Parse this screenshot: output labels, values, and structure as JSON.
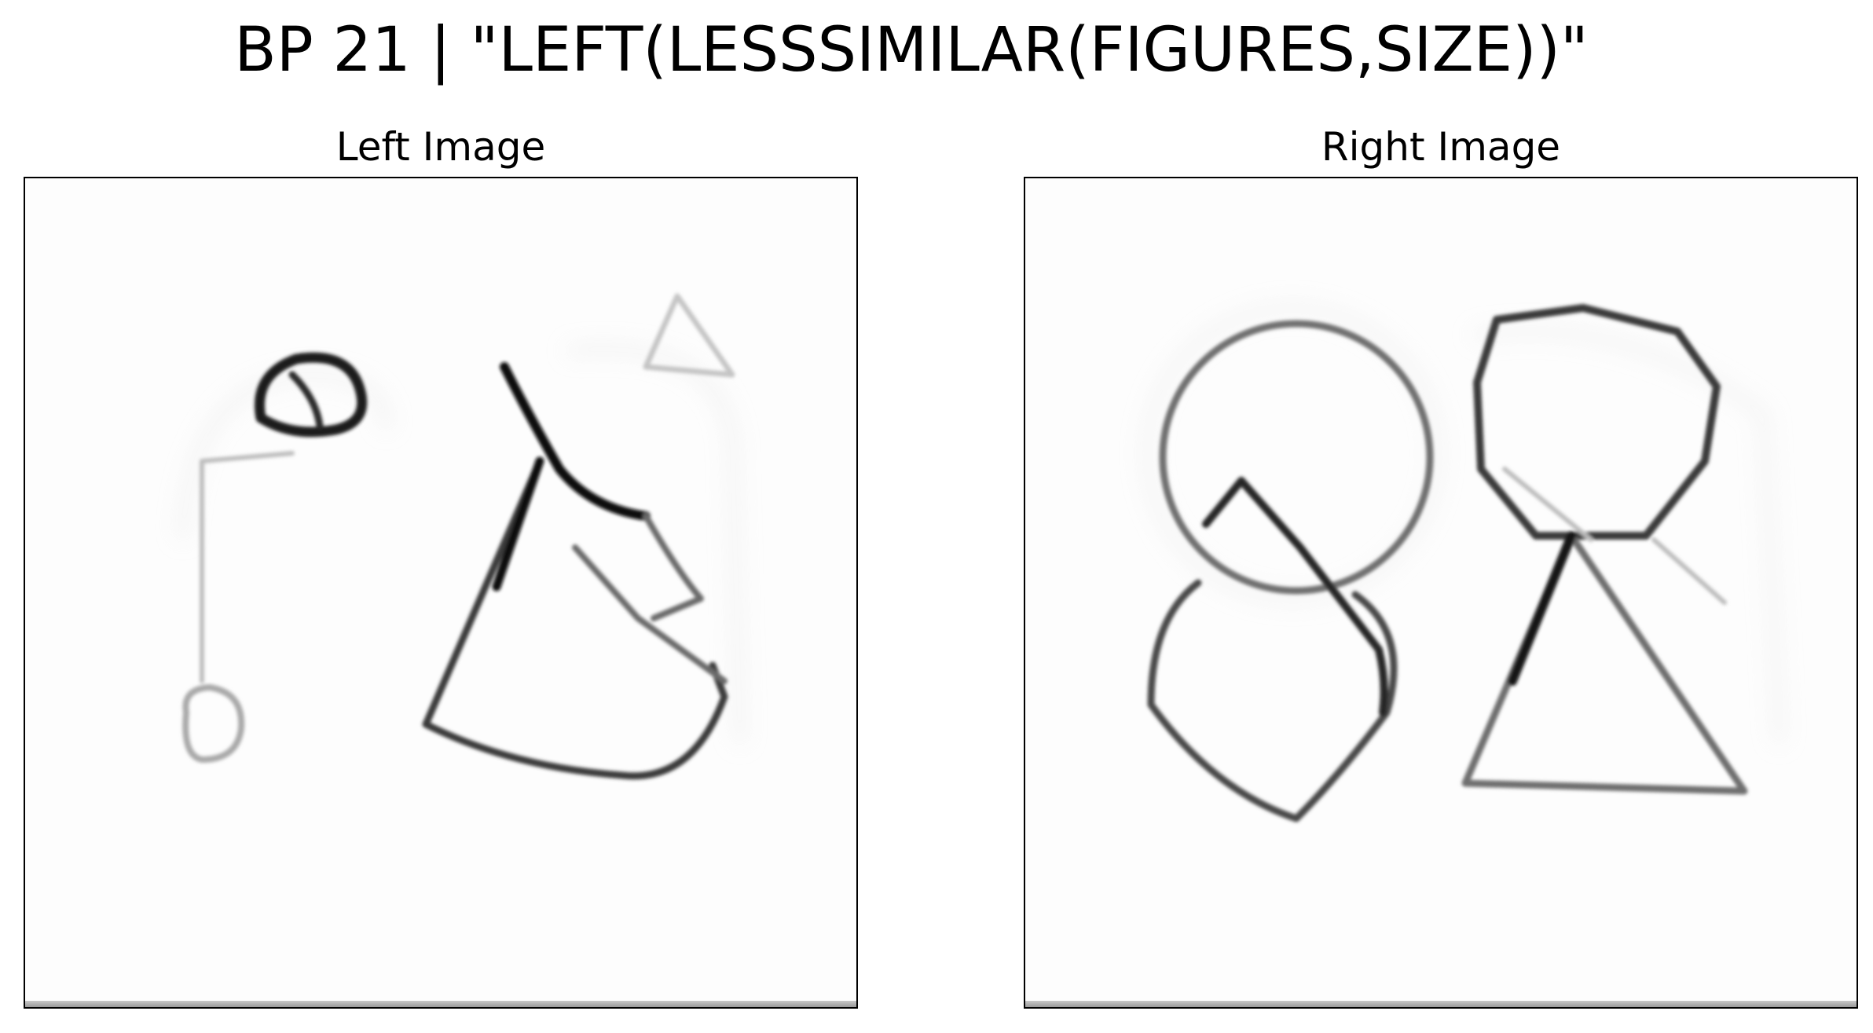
{
  "figure": {
    "title": "BP 21 | \"LEFT(LESSSIMILAR(FIGURES,SIZE))\""
  },
  "panels": {
    "left": {
      "title": "Left Image",
      "drawing": "hand-drawn figures: small dark ellipse, faint flag line with small circle, small faint triangle, large irregular quadrilateral with zigzag"
    },
    "right": {
      "title": "Right Image",
      "drawing": "hand-drawn figures: circle overlapping a rounded quadrilateral with a zigzag line, octagon above a large triangle"
    }
  },
  "colors": {
    "stroke_dark": "#111111",
    "stroke_mid": "#555555",
    "stroke_faint": "#bdbdbd",
    "background": "#fdfdfd"
  }
}
